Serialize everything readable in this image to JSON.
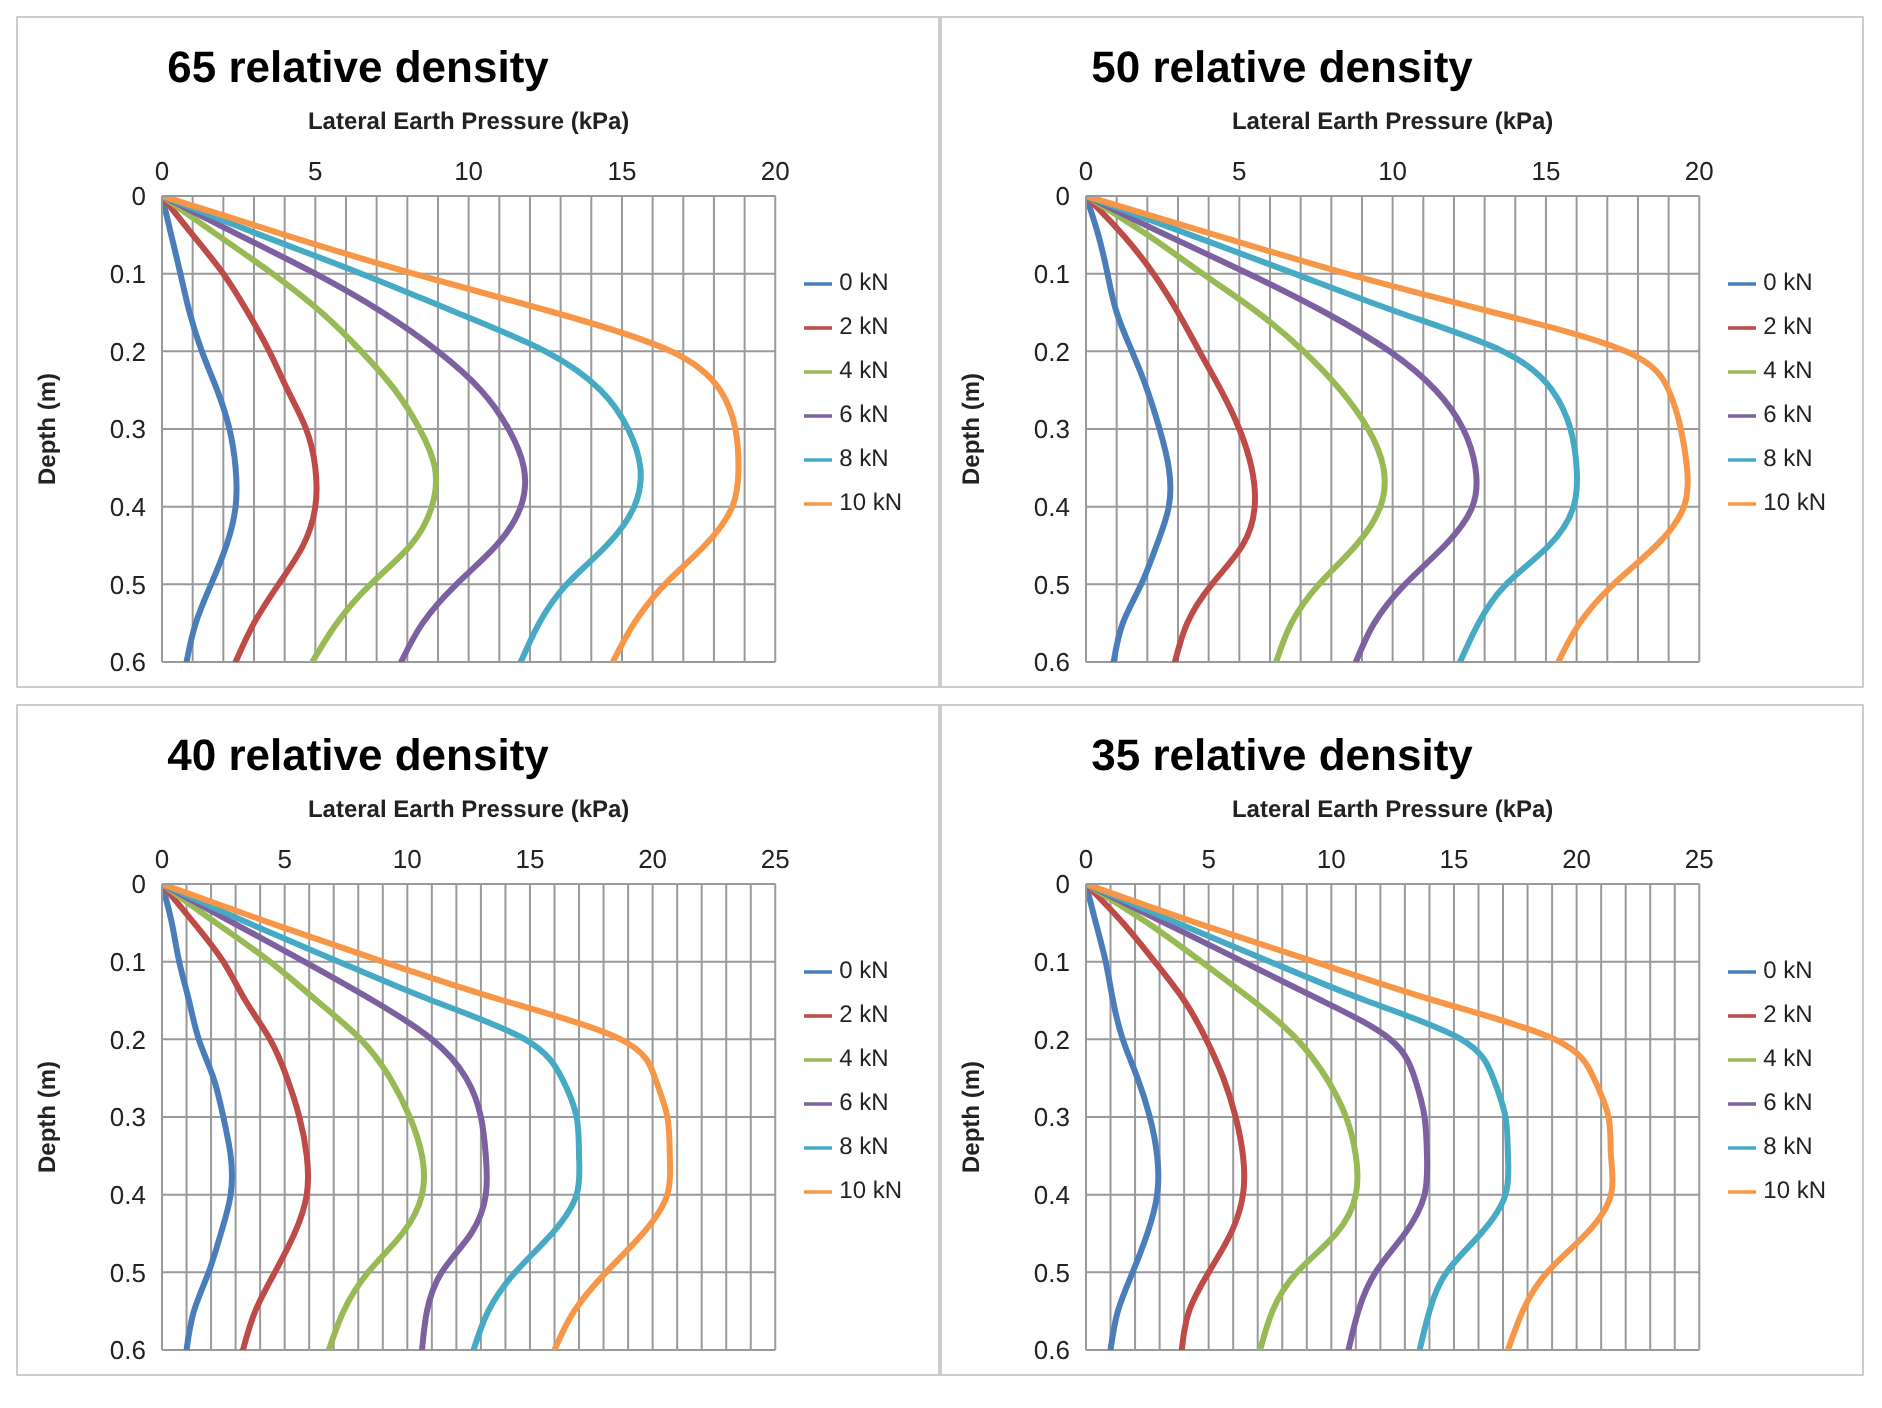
{
  "chart_data": [
    {
      "type": "line",
      "title": "65 relative density",
      "xlabel": "Lateral Earth Pressure (kPa)",
      "ylabel": "Depth (m)",
      "xlim": [
        0,
        20
      ],
      "xticks": [
        0,
        {
          "value": 1,
          "label": null
        },
        {
          "value": 2,
          "label": null
        },
        {
          "value": 3,
          "label": null
        },
        {
          "value": 4,
          "label": null
        },
        5,
        {
          "value": 6,
          "label": null
        },
        {
          "value": 7,
          "label": null
        },
        {
          "value": 8,
          "label": null
        },
        {
          "value": 9,
          "label": null
        },
        10,
        {
          "value": 11,
          "label": null
        },
        {
          "value": 12,
          "label": null
        },
        {
          "value": 13,
          "label": null
        },
        {
          "value": 14,
          "label": null
        },
        15,
        {
          "value": 16,
          "label": null
        },
        {
          "value": 17,
          "label": null
        },
        {
          "value": 18,
          "label": null
        },
        {
          "value": 19,
          "label": null
        },
        20
      ],
      "ylim": [
        0.6,
        0
      ],
      "yticks": [
        0,
        0.1,
        0.2,
        0.3,
        0.4,
        0.5,
        0.6
      ],
      "grid": true,
      "legend": "right",
      "series": [
        {
          "name": "0 kN",
          "color": "#4a7ebb",
          "x": [
            0,
            0.3,
            0.6,
            0.9,
            1.3,
            1.8,
            2.2,
            2.4,
            2.4,
            2.1,
            1.6,
            1.1,
            0.8
          ],
          "values": [
            0,
            0.05,
            0.1,
            0.15,
            0.2,
            0.25,
            0.3,
            0.35,
            0.4,
            0.45,
            0.5,
            0.55,
            0.6
          ]
        },
        {
          "name": "2 kN",
          "color": "#be4b48",
          "x": [
            0,
            1,
            2,
            2.8,
            3.5,
            4.1,
            4.7,
            5,
            5,
            4.6,
            3.8,
            3,
            2.4
          ],
          "values": [
            0,
            0.05,
            0.1,
            0.15,
            0.2,
            0.25,
            0.3,
            0.35,
            0.4,
            0.45,
            0.5,
            0.55,
            0.6
          ]
        },
        {
          "name": "4 kN",
          "color": "#98b954",
          "x": [
            0,
            1.8,
            3.6,
            5.2,
            6.5,
            7.6,
            8.4,
            8.9,
            8.8,
            8.1,
            6.8,
            5.7,
            4.9
          ],
          "values": [
            0,
            0.05,
            0.1,
            0.15,
            0.2,
            0.25,
            0.3,
            0.35,
            0.4,
            0.45,
            0.5,
            0.55,
            0.6
          ]
        },
        {
          "name": "6 kN",
          "color": "#7d60a0",
          "x": [
            0,
            2.5,
            5,
            7.2,
            9,
            10.4,
            11.3,
            11.8,
            11.7,
            10.9,
            9.6,
            8.5,
            7.8
          ],
          "values": [
            0,
            0.05,
            0.1,
            0.15,
            0.2,
            0.25,
            0.3,
            0.35,
            0.4,
            0.45,
            0.5,
            0.55,
            0.6
          ]
        },
        {
          "name": "8 kN",
          "color": "#46aac5",
          "x": [
            0,
            3.2,
            6.5,
            9.6,
            12.5,
            14.3,
            15.2,
            15.6,
            15.4,
            14.5,
            13.2,
            12.3,
            11.7
          ],
          "values": [
            0,
            0.05,
            0.1,
            0.15,
            0.2,
            0.25,
            0.3,
            0.35,
            0.4,
            0.45,
            0.5,
            0.55,
            0.6
          ]
        },
        {
          "name": "10 kN",
          "color": "#f79646",
          "x": [
            0,
            4,
            8.2,
            12.8,
            16.6,
            18.2,
            18.7,
            18.8,
            18.6,
            17.7,
            16.4,
            15.4,
            14.7
          ],
          "values": [
            0,
            0.05,
            0.1,
            0.15,
            0.2,
            0.25,
            0.3,
            0.35,
            0.4,
            0.45,
            0.5,
            0.55,
            0.6
          ]
        }
      ]
    },
    {
      "type": "line",
      "title": "50 relative density",
      "xlabel": "Lateral Earth Pressure (kPa)",
      "ylabel": "Depth (m)",
      "xlim": [
        0,
        20
      ],
      "xticks": [
        0,
        {
          "value": 1,
          "label": null
        },
        {
          "value": 2,
          "label": null
        },
        {
          "value": 3,
          "label": null
        },
        {
          "value": 4,
          "label": null
        },
        5,
        {
          "value": 6,
          "label": null
        },
        {
          "value": 7,
          "label": null
        },
        {
          "value": 8,
          "label": null
        },
        {
          "value": 9,
          "label": null
        },
        10,
        {
          "value": 11,
          "label": null
        },
        {
          "value": 12,
          "label": null
        },
        {
          "value": 13,
          "label": null
        },
        {
          "value": 14,
          "label": null
        },
        15,
        {
          "value": 16,
          "label": null
        },
        {
          "value": 17,
          "label": null
        },
        {
          "value": 18,
          "label": null
        },
        {
          "value": 19,
          "label": null
        },
        20
      ],
      "ylim": [
        0.6,
        0
      ],
      "yticks": [
        0,
        0.1,
        0.2,
        0.3,
        0.4,
        0.5,
        0.6
      ],
      "grid": true,
      "legend": "right",
      "series": [
        {
          "name": "0 kN",
          "color": "#4a7ebb",
          "x": [
            0,
            0.4,
            0.7,
            1,
            1.5,
            2,
            2.4,
            2.7,
            2.7,
            2.3,
            1.8,
            1.2,
            0.9
          ],
          "values": [
            0,
            0.05,
            0.1,
            0.15,
            0.2,
            0.25,
            0.3,
            0.35,
            0.4,
            0.45,
            0.5,
            0.55,
            0.6
          ]
        },
        {
          "name": "2 kN",
          "color": "#be4b48",
          "x": [
            0,
            1.2,
            2.2,
            3,
            3.7,
            4.4,
            5,
            5.4,
            5.5,
            5.1,
            4.1,
            3.3,
            2.9
          ],
          "values": [
            0,
            0.05,
            0.1,
            0.15,
            0.2,
            0.25,
            0.3,
            0.35,
            0.4,
            0.45,
            0.5,
            0.55,
            0.6
          ]
        },
        {
          "name": "4 kN",
          "color": "#98b954",
          "x": [
            0,
            2,
            3.8,
            5.6,
            7.1,
            8.3,
            9.2,
            9.7,
            9.6,
            8.8,
            7.6,
            6.7,
            6.2
          ],
          "values": [
            0,
            0.05,
            0.1,
            0.15,
            0.2,
            0.25,
            0.3,
            0.35,
            0.4,
            0.45,
            0.5,
            0.55,
            0.6
          ]
        },
        {
          "name": "6 kN",
          "color": "#7d60a0",
          "x": [
            0,
            2.6,
            5.3,
            7.8,
            9.9,
            11.4,
            12.3,
            12.7,
            12.6,
            11.7,
            10.4,
            9.4,
            8.8
          ],
          "values": [
            0,
            0.05,
            0.1,
            0.15,
            0.2,
            0.25,
            0.3,
            0.35,
            0.4,
            0.45,
            0.5,
            0.55,
            0.6
          ]
        },
        {
          "name": "8 kN",
          "color": "#46aac5",
          "x": [
            0,
            3.4,
            6.8,
            10.2,
            13.6,
            15.2,
            15.8,
            16,
            15.9,
            15.1,
            13.7,
            12.8,
            12.2
          ],
          "values": [
            0,
            0.05,
            0.1,
            0.15,
            0.2,
            0.25,
            0.3,
            0.35,
            0.4,
            0.45,
            0.5,
            0.55,
            0.6
          ]
        },
        {
          "name": "10 kN",
          "color": "#f79646",
          "x": [
            0,
            4.2,
            8.5,
            13.3,
            17.6,
            19,
            19.4,
            19.6,
            19.5,
            18.6,
            17.2,
            16.1,
            15.4
          ],
          "values": [
            0,
            0.05,
            0.1,
            0.15,
            0.2,
            0.25,
            0.3,
            0.35,
            0.4,
            0.45,
            0.5,
            0.55,
            0.6
          ]
        }
      ]
    },
    {
      "type": "line",
      "title": "40 relative density",
      "xlabel": "Lateral Earth Pressure (kPa)",
      "ylabel": "Depth (m)",
      "xlim": [
        0,
        25
      ],
      "xticks": [
        0,
        {
          "value": 1,
          "label": null
        },
        {
          "value": 2,
          "label": null
        },
        {
          "value": 3,
          "label": null
        },
        {
          "value": 4,
          "label": null
        },
        5,
        {
          "value": 6,
          "label": null
        },
        {
          "value": 7,
          "label": null
        },
        {
          "value": 8,
          "label": null
        },
        {
          "value": 9,
          "label": null
        },
        10,
        {
          "value": 11,
          "label": null
        },
        {
          "value": 12,
          "label": null
        },
        {
          "value": 13,
          "label": null
        },
        {
          "value": 14,
          "label": null
        },
        15,
        {
          "value": 16,
          "label": null
        },
        {
          "value": 17,
          "label": null
        },
        {
          "value": 18,
          "label": null
        },
        {
          "value": 19,
          "label": null
        },
        20,
        {
          "value": 21,
          "label": null
        },
        {
          "value": 22,
          "label": null
        },
        {
          "value": 23,
          "label": null
        },
        {
          "value": 24,
          "label": null
        },
        25
      ],
      "ylim": [
        0.6,
        0
      ],
      "yticks": [
        0,
        0.1,
        0.2,
        0.3,
        0.4,
        0.5,
        0.6
      ],
      "grid": true,
      "legend": "right",
      "series": [
        {
          "name": "0 kN",
          "color": "#4a7ebb",
          "x": [
            0,
            0.4,
            0.7,
            1.1,
            1.5,
            2.1,
            2.5,
            2.8,
            2.8,
            2.4,
            1.9,
            1.3,
            1
          ],
          "values": [
            0,
            0.05,
            0.1,
            0.15,
            0.2,
            0.25,
            0.3,
            0.35,
            0.4,
            0.45,
            0.5,
            0.55,
            0.6
          ]
        },
        {
          "name": "2 kN",
          "color": "#be4b48",
          "x": [
            0,
            1.3,
            2.5,
            3.4,
            4.4,
            5.1,
            5.6,
            5.9,
            5.9,
            5.4,
            4.6,
            3.8,
            3.3
          ],
          "values": [
            0,
            0.05,
            0.1,
            0.15,
            0.2,
            0.25,
            0.3,
            0.35,
            0.4,
            0.45,
            0.5,
            0.55,
            0.6
          ]
        },
        {
          "name": "4 kN",
          "color": "#98b954",
          "x": [
            0,
            2.2,
            4.4,
            6.3,
            8.1,
            9.3,
            10.1,
            10.6,
            10.6,
            9.8,
            8.4,
            7.4,
            6.8
          ],
          "values": [
            0,
            0.05,
            0.1,
            0.15,
            0.2,
            0.25,
            0.3,
            0.35,
            0.4,
            0.45,
            0.5,
            0.55,
            0.6
          ]
        },
        {
          "name": "6 kN",
          "color": "#7d60a0",
          "x": [
            0,
            2.9,
            5.8,
            8.6,
            11,
            12.4,
            13,
            13.2,
            13.2,
            12.6,
            11.4,
            10.8,
            10.6
          ],
          "values": [
            0,
            0.05,
            0.1,
            0.15,
            0.2,
            0.25,
            0.3,
            0.35,
            0.4,
            0.45,
            0.5,
            0.55,
            0.6
          ]
        },
        {
          "name": "8 kN",
          "color": "#46aac5",
          "x": [
            0,
            3.5,
            7.2,
            11,
            14.8,
            16.3,
            16.9,
            17,
            16.9,
            15.9,
            14.4,
            13.3,
            12.7
          ],
          "values": [
            0,
            0.05,
            0.1,
            0.15,
            0.2,
            0.25,
            0.3,
            0.35,
            0.4,
            0.45,
            0.5,
            0.55,
            0.6
          ]
        },
        {
          "name": "10 kN",
          "color": "#f79646",
          "x": [
            0,
            4.4,
            9,
            13.9,
            18.7,
            20.1,
            20.6,
            20.7,
            20.6,
            19.6,
            18.1,
            16.8,
            16
          ],
          "values": [
            0,
            0.05,
            0.1,
            0.15,
            0.2,
            0.25,
            0.3,
            0.35,
            0.4,
            0.45,
            0.5,
            0.55,
            0.6
          ]
        }
      ]
    },
    {
      "type": "line",
      "title": "35 relative density",
      "xlabel": "Lateral Earth Pressure (kPa)",
      "ylabel": "Depth (m)",
      "xlim": [
        0,
        25
      ],
      "xticks": [
        0,
        {
          "value": 1,
          "label": null
        },
        {
          "value": 2,
          "label": null
        },
        {
          "value": 3,
          "label": null
        },
        {
          "value": 4,
          "label": null
        },
        5,
        {
          "value": 6,
          "label": null
        },
        {
          "value": 7,
          "label": null
        },
        {
          "value": 8,
          "label": null
        },
        {
          "value": 9,
          "label": null
        },
        10,
        {
          "value": 11,
          "label": null
        },
        {
          "value": 12,
          "label": null
        },
        {
          "value": 13,
          "label": null
        },
        {
          "value": 14,
          "label": null
        },
        15,
        {
          "value": 16,
          "label": null
        },
        {
          "value": 17,
          "label": null
        },
        {
          "value": 18,
          "label": null
        },
        {
          "value": 19,
          "label": null
        },
        20,
        {
          "value": 21,
          "label": null
        },
        {
          "value": 22,
          "label": null
        },
        {
          "value": 23,
          "label": null
        },
        {
          "value": 24,
          "label": null
        },
        25
      ],
      "ylim": [
        0.6,
        0
      ],
      "yticks": [
        0,
        0.1,
        0.2,
        0.3,
        0.4,
        0.5,
        0.6
      ],
      "grid": true,
      "legend": "right",
      "series": [
        {
          "name": "0 kN",
          "color": "#4a7ebb",
          "x": [
            0,
            0.4,
            0.8,
            1.1,
            1.5,
            2.1,
            2.6,
            2.9,
            2.9,
            2.5,
            1.9,
            1.3,
            1
          ],
          "values": [
            0,
            0.05,
            0.1,
            0.15,
            0.2,
            0.25,
            0.3,
            0.35,
            0.4,
            0.45,
            0.5,
            0.55,
            0.6
          ]
        },
        {
          "name": "2 kN",
          "color": "#be4b48",
          "x": [
            0,
            1.5,
            2.8,
            4,
            4.9,
            5.6,
            6.1,
            6.4,
            6.4,
            5.9,
            5,
            4.2,
            3.9
          ],
          "values": [
            0,
            0.05,
            0.1,
            0.15,
            0.2,
            0.25,
            0.3,
            0.35,
            0.4,
            0.45,
            0.5,
            0.55,
            0.6
          ]
        },
        {
          "name": "4 kN",
          "color": "#98b954",
          "x": [
            0,
            2.5,
            4.7,
            6.8,
            8.6,
            9.8,
            10.6,
            11,
            11,
            10.2,
            8.6,
            7.6,
            7.1
          ],
          "values": [
            0,
            0.05,
            0.1,
            0.15,
            0.2,
            0.25,
            0.3,
            0.35,
            0.4,
            0.45,
            0.5,
            0.55,
            0.6
          ]
        },
        {
          "name": "6 kN",
          "color": "#7d60a0",
          "x": [
            0,
            3.2,
            6.4,
            9.6,
            12.4,
            13.4,
            13.8,
            13.9,
            13.8,
            13,
            11.8,
            11.1,
            10.7
          ],
          "values": [
            0,
            0.05,
            0.1,
            0.15,
            0.2,
            0.25,
            0.3,
            0.35,
            0.4,
            0.45,
            0.5,
            0.55,
            0.6
          ]
        },
        {
          "name": "8 kN",
          "color": "#46aac5",
          "x": [
            0,
            3.7,
            7.5,
            11.4,
            15.3,
            16.6,
            17.1,
            17.2,
            17.1,
            16.1,
            14.7,
            14,
            13.6
          ],
          "values": [
            0,
            0.05,
            0.1,
            0.15,
            0.2,
            0.25,
            0.3,
            0.35,
            0.4,
            0.45,
            0.5,
            0.55,
            0.6
          ]
        },
        {
          "name": "10 kN",
          "color": "#f79646",
          "x": [
            0,
            4.5,
            9.3,
            14.2,
            19.1,
            20.7,
            21.3,
            21.4,
            21.4,
            20.4,
            18.8,
            17.8,
            17.2
          ],
          "values": [
            0,
            0.05,
            0.1,
            0.15,
            0.2,
            0.25,
            0.3,
            0.35,
            0.4,
            0.45,
            0.5,
            0.55,
            0.6
          ]
        }
      ]
    }
  ]
}
